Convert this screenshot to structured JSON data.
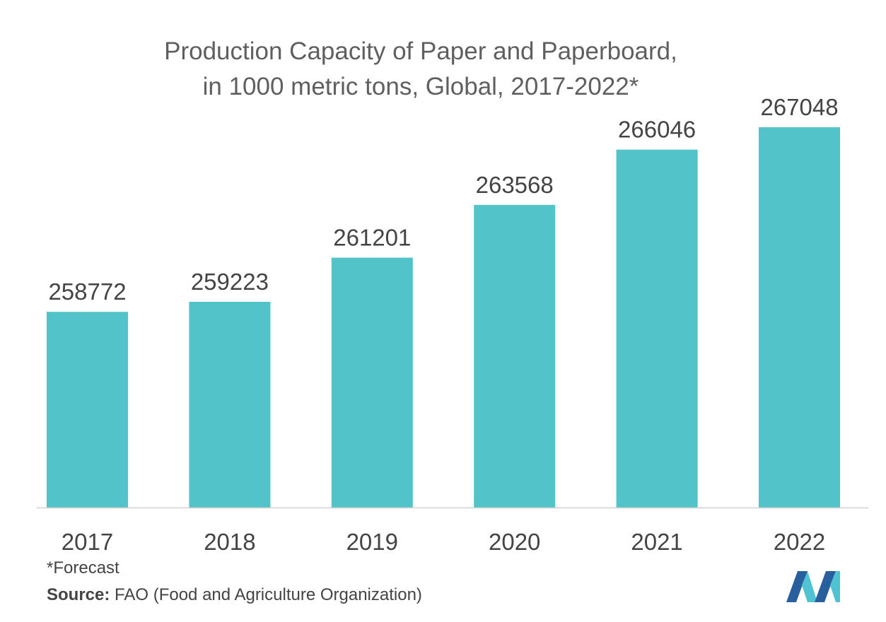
{
  "chart_data": {
    "type": "bar",
    "title_lines": [
      "Production Capacity of Paper and Paperboard,",
      "in 1000 metric tons, Global, 2017-2022*"
    ],
    "categories": [
      "2017",
      "2018",
      "2019",
      "2020",
      "2021",
      "2022"
    ],
    "values": [
      258772,
      259223,
      261201,
      263568,
      266046,
      267048
    ],
    "data_labels": [
      "258772",
      "259223",
      "261201",
      "263568",
      "266046",
      "267048"
    ],
    "xlabel": "",
    "ylabel": "",
    "ylim": [
      250000,
      268000
    ],
    "grid": false,
    "legend": "none",
    "bar_color": "#52c3c9"
  },
  "footnote": "*Forecast",
  "source": {
    "label": "Source:",
    "text": " FAO (Food and Agriculture Organization)"
  },
  "logo": {
    "icon": "mordor-intelligence-logo-icon",
    "colors": [
      "#2a5f9e",
      "#4fc3d1"
    ]
  }
}
